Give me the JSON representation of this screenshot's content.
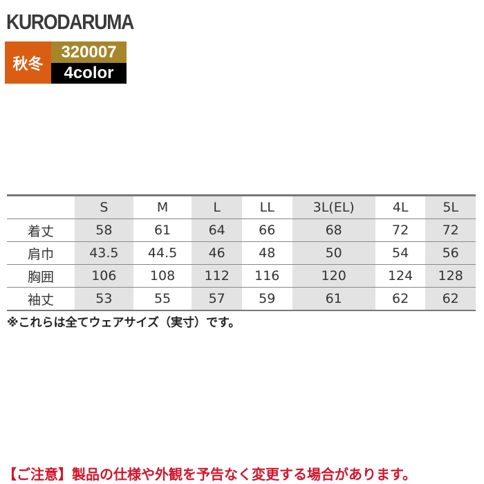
{
  "brand": "KURODARUMA",
  "badge": {
    "season": "秋冬",
    "code": "320007",
    "colors": "4color"
  },
  "table": {
    "headers": [
      "",
      "S",
      "M",
      "L",
      "LL",
      "3L(EL)",
      "4L",
      "5L"
    ],
    "rows": [
      {
        "label": "着丈",
        "values": [
          "58",
          "61",
          "64",
          "66",
          "68",
          "72",
          "72"
        ]
      },
      {
        "label": "肩巾",
        "values": [
          "43.5",
          "44.5",
          "46",
          "48",
          "50",
          "54",
          "56"
        ]
      },
      {
        "label": "胸囲",
        "values": [
          "106",
          "108",
          "112",
          "116",
          "120",
          "124",
          "128"
        ]
      },
      {
        "label": "袖丈",
        "values": [
          "53",
          "55",
          "57",
          "59",
          "61",
          "62",
          "62"
        ]
      }
    ]
  },
  "note": "※これらは全てウェアサイズ（実寸）です。",
  "caution": "【ご注意】製品の仕様や外観を予告なく変更する場合があります。",
  "colors": {
    "season": "#d95e14",
    "code": "#a6852b",
    "caution": "#d1152a",
    "shade": "#e3e3e3"
  }
}
